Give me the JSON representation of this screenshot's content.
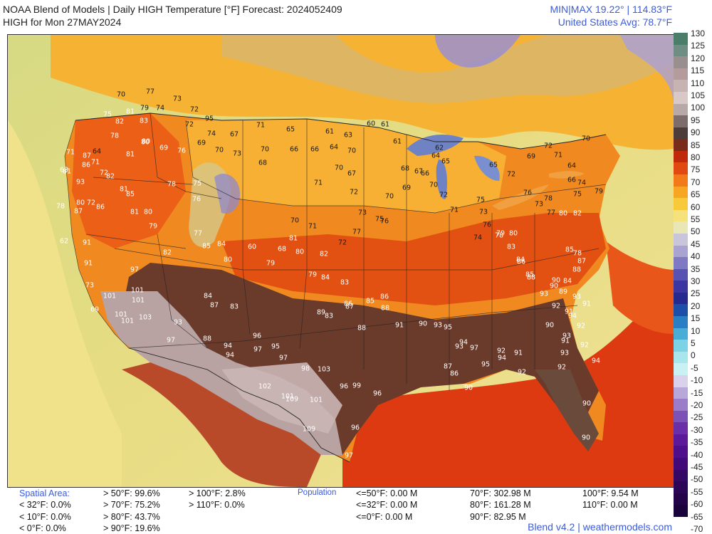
{
  "header": {
    "title_line1": "NOAA Blend of Models | Daily HIGH Temperature [°F] Forecast: 2024052409",
    "title_line2": "HIGH for Mon 27MAY2024",
    "minmax": "MIN|MAX 19.22°  |  114.83°F",
    "average": "United States Avg: 78.7°F"
  },
  "scale": {
    "ticks": [
      "130",
      "125",
      "120",
      "115",
      "110",
      "105",
      "100",
      "95",
      "90",
      "85",
      "80",
      "75",
      "70",
      "65",
      "60",
      "55",
      "50",
      "45",
      "40",
      "35",
      "30",
      "25",
      "20",
      "15",
      "10",
      "5",
      "0",
      "-5",
      "-10",
      "-15",
      "-20",
      "-25",
      "-30",
      "-35",
      "-40",
      "-45",
      "-50",
      "-55",
      "-60",
      "-65",
      "-70"
    ],
    "colors": [
      "#4a7e6a",
      "#6f8d83",
      "#9a8f8f",
      "#b59c9c",
      "#c8b3b3",
      "#d9c8c8",
      "#b8a9a9",
      "#7d6c6c",
      "#4d3d3a",
      "#7a2c1a",
      "#c02a0c",
      "#e04a10",
      "#f27a18",
      "#f7a522",
      "#f8c93a",
      "#f6e27a",
      "#e9e7b5",
      "#c9c6dc",
      "#a8a3d1",
      "#7f78c2",
      "#5a52b0",
      "#3c36a2",
      "#252a8f",
      "#1e4fa8",
      "#2a7ec4",
      "#49aed6",
      "#7dd3e6",
      "#a8e6ee",
      "#c9f0f2",
      "#d9d2ea",
      "#b8a8da",
      "#9a7cc8",
      "#7d52b6",
      "#6a2ea8",
      "#5c1a9a",
      "#4f0f8a",
      "#420a78",
      "#360866",
      "#2c0656",
      "#230448",
      "#1a033a"
    ]
  },
  "stats": {
    "spatial_label": "Spatial Area:",
    "population_label": "Population",
    "items": [
      "> 50°F: 99.6%",
      "> 100°F: 2.8%",
      "< 32°F: 0.0%",
      "> 70°F: 75.2%",
      "> 110°F: 0.0%",
      "< 10°F: 0.0%",
      "> 80°F: 43.7%",
      "< 0°F: 0.0%",
      "> 90°F: 19.6%",
      "<=50°F: 0.00 M",
      "<=32°F: 0.00 M",
      "<=0°F: 0.00 M",
      "70°F: 302.98 M",
      "80°F: 161.28 M",
      "90°F: 82.95 M",
      "100°F: 9.54 M",
      "110°F: 0.00 M"
    ]
  },
  "footer": "Blend v4.2 | weathermodels.com",
  "map": {
    "city_values": [
      {
        "t": "77",
        "c": "dark"
      },
      {
        "t": "73",
        "c": "dark"
      },
      {
        "t": "70",
        "c": "dark"
      },
      {
        "t": "81",
        "c": "light"
      },
      {
        "t": "79",
        "c": "dark"
      },
      {
        "t": "74",
        "c": "dark"
      },
      {
        "t": "72",
        "c": "dark"
      },
      {
        "t": "75",
        "c": "light"
      },
      {
        "t": "82",
        "c": "light"
      },
      {
        "t": "83",
        "c": "light"
      },
      {
        "t": "72",
        "c": "dark"
      },
      {
        "t": "78",
        "c": "light"
      },
      {
        "t": "80",
        "c": "light"
      },
      {
        "t": "81",
        "c": "light"
      },
      {
        "t": "80",
        "c": "light"
      },
      {
        "t": "69",
        "c": "light"
      },
      {
        "t": "76",
        "c": "light"
      },
      {
        "t": "95",
        "c": "dark"
      },
      {
        "t": "74",
        "c": "dark"
      },
      {
        "t": "69",
        "c": "dark"
      },
      {
        "t": "70",
        "c": "dark"
      },
      {
        "t": "67",
        "c": "dark"
      },
      {
        "t": "73",
        "c": "dark"
      },
      {
        "t": "71",
        "c": "dark"
      },
      {
        "t": "70",
        "c": "dark"
      },
      {
        "t": "68",
        "c": "dark"
      },
      {
        "t": "66",
        "c": "dark"
      },
      {
        "t": "66",
        "c": "dark"
      },
      {
        "t": "64",
        "c": "dark"
      },
      {
        "t": "70",
        "c": "dark"
      },
      {
        "t": "65",
        "c": "dark"
      },
      {
        "t": "61",
        "c": "dark"
      },
      {
        "t": "63",
        "c": "dark"
      },
      {
        "t": "60",
        "c": "dark"
      },
      {
        "t": "61",
        "c": "dark"
      },
      {
        "t": "71",
        "c": "light"
      },
      {
        "t": "87",
        "c": "light"
      },
      {
        "t": "64",
        "c": "dark"
      },
      {
        "t": "71",
        "c": "light"
      },
      {
        "t": "86",
        "c": "light"
      },
      {
        "t": "81",
        "c": "light"
      },
      {
        "t": "82",
        "c": "light"
      },
      {
        "t": "72",
        "c": "light"
      },
      {
        "t": "63",
        "c": "light"
      },
      {
        "t": "93",
        "c": "light"
      },
      {
        "t": "81",
        "c": "light"
      },
      {
        "t": "78",
        "c": "light"
      },
      {
        "t": "75",
        "c": "light"
      },
      {
        "t": "76",
        "c": "light"
      },
      {
        "t": "85",
        "c": "light"
      },
      {
        "t": "81",
        "c": "light"
      },
      {
        "t": "80",
        "c": "light"
      },
      {
        "t": "79",
        "c": "light"
      },
      {
        "t": "80",
        "c": "light"
      },
      {
        "t": "87",
        "c": "light"
      },
      {
        "t": "72",
        "c": "light"
      },
      {
        "t": "86",
        "c": "light"
      },
      {
        "t": "78",
        "c": "light"
      },
      {
        "t": "62",
        "c": "light"
      },
      {
        "t": "91",
        "c": "light"
      },
      {
        "t": "91",
        "c": "light"
      },
      {
        "t": "82",
        "c": "light"
      },
      {
        "t": "77",
        "c": "light"
      },
      {
        "t": "85",
        "c": "light"
      },
      {
        "t": "84",
        "c": "light"
      },
      {
        "t": "80",
        "c": "light"
      },
      {
        "t": "97",
        "c": "light"
      },
      {
        "t": "73",
        "c": "light"
      },
      {
        "t": "101",
        "c": "light"
      },
      {
        "t": "101",
        "c": "light"
      },
      {
        "t": "101",
        "c": "light"
      },
      {
        "t": "69",
        "c": "light"
      },
      {
        "t": "101",
        "c": "light"
      },
      {
        "t": "101",
        "c": "light"
      },
      {
        "t": "103",
        "c": "light"
      },
      {
        "t": "93",
        "c": "light"
      },
      {
        "t": "97",
        "c": "light"
      },
      {
        "t": "84",
        "c": "light"
      },
      {
        "t": "87",
        "c": "light"
      },
      {
        "t": "83",
        "c": "light"
      },
      {
        "t": "88",
        "c": "light"
      },
      {
        "t": "94",
        "c": "light"
      },
      {
        "t": "94",
        "c": "light"
      },
      {
        "t": "97",
        "c": "light"
      },
      {
        "t": "96",
        "c": "light"
      },
      {
        "t": "95",
        "c": "light"
      },
      {
        "t": "97",
        "c": "light"
      },
      {
        "t": "98",
        "c": "light"
      },
      {
        "t": "103",
        "c": "light"
      },
      {
        "t": "96",
        "c": "light"
      },
      {
        "t": "102",
        "c": "light"
      },
      {
        "t": "101",
        "c": "light"
      },
      {
        "t": "109",
        "c": "light"
      },
      {
        "t": "101",
        "c": "light"
      },
      {
        "t": "99",
        "c": "light"
      },
      {
        "t": "109",
        "c": "light"
      },
      {
        "t": "96",
        "c": "light"
      },
      {
        "t": "97",
        "c": "light"
      },
      {
        "t": "96",
        "c": "light"
      },
      {
        "t": "70",
        "c": "dark"
      },
      {
        "t": "71",
        "c": "dark"
      },
      {
        "t": "67",
        "c": "dark"
      },
      {
        "t": "72",
        "c": "dark"
      },
      {
        "t": "70",
        "c": "dark"
      },
      {
        "t": "73",
        "c": "dark"
      },
      {
        "t": "76",
        "c": "dark"
      },
      {
        "t": "77",
        "c": "dark"
      },
      {
        "t": "75",
        "c": "dark"
      },
      {
        "t": "72",
        "c": "dark"
      },
      {
        "t": "71",
        "c": "dark"
      },
      {
        "t": "70",
        "c": "dark"
      },
      {
        "t": "68",
        "c": "light"
      },
      {
        "t": "79",
        "c": "light"
      },
      {
        "t": "60",
        "c": "light"
      },
      {
        "t": "80",
        "c": "light"
      },
      {
        "t": "81",
        "c": "light"
      },
      {
        "t": "82",
        "c": "light"
      },
      {
        "t": "79",
        "c": "light"
      },
      {
        "t": "84",
        "c": "light"
      },
      {
        "t": "83",
        "c": "light"
      },
      {
        "t": "89",
        "c": "light"
      },
      {
        "t": "83",
        "c": "light"
      },
      {
        "t": "86",
        "c": "light"
      },
      {
        "t": "85",
        "c": "light"
      },
      {
        "t": "86",
        "c": "light"
      },
      {
        "t": "88",
        "c": "light"
      },
      {
        "t": "87",
        "c": "light"
      },
      {
        "t": "88",
        "c": "light"
      },
      {
        "t": "91",
        "c": "light"
      },
      {
        "t": "90",
        "c": "light"
      },
      {
        "t": "93",
        "c": "light"
      },
      {
        "t": "95",
        "c": "light"
      },
      {
        "t": "94",
        "c": "light"
      },
      {
        "t": "93",
        "c": "light"
      },
      {
        "t": "97",
        "c": "light"
      },
      {
        "t": "95",
        "c": "light"
      },
      {
        "t": "92",
        "c": "light"
      },
      {
        "t": "94",
        "c": "light"
      },
      {
        "t": "91",
        "c": "light"
      },
      {
        "t": "92",
        "c": "light"
      },
      {
        "t": "90",
        "c": "light"
      },
      {
        "t": "87",
        "c": "light"
      },
      {
        "t": "86",
        "c": "light"
      },
      {
        "t": "65",
        "c": "dark"
      },
      {
        "t": "62",
        "c": "dark"
      },
      {
        "t": "61",
        "c": "dark"
      },
      {
        "t": "64",
        "c": "dark"
      },
      {
        "t": "65",
        "c": "dark"
      },
      {
        "t": "68",
        "c": "dark"
      },
      {
        "t": "67",
        "c": "dark"
      },
      {
        "t": "66",
        "c": "dark"
      },
      {
        "t": "69",
        "c": "dark"
      },
      {
        "t": "70",
        "c": "dark"
      },
      {
        "t": "72",
        "c": "dark"
      },
      {
        "t": "71",
        "c": "dark"
      },
      {
        "t": "75",
        "c": "dark"
      },
      {
        "t": "73",
        "c": "dark"
      },
      {
        "t": "76",
        "c": "dark"
      },
      {
        "t": "74",
        "c": "dark"
      },
      {
        "t": "78",
        "c": "light"
      },
      {
        "t": "79",
        "c": "light"
      },
      {
        "t": "80",
        "c": "light"
      },
      {
        "t": "83",
        "c": "light"
      },
      {
        "t": "84",
        "c": "light"
      },
      {
        "t": "86",
        "c": "light"
      },
      {
        "t": "85",
        "c": "light"
      },
      {
        "t": "88",
        "c": "light"
      },
      {
        "t": "90",
        "c": "light"
      },
      {
        "t": "89",
        "c": "light"
      },
      {
        "t": "91",
        "c": "light"
      },
      {
        "t": "93",
        "c": "light"
      },
      {
        "t": "92",
        "c": "light"
      },
      {
        "t": "94",
        "c": "light"
      },
      {
        "t": "90",
        "c": "light"
      },
      {
        "t": "91",
        "c": "light"
      },
      {
        "t": "93",
        "c": "light"
      },
      {
        "t": "92",
        "c": "light"
      },
      {
        "t": "90",
        "c": "light"
      },
      {
        "t": "72",
        "c": "dark"
      },
      {
        "t": "76",
        "c": "dark"
      },
      {
        "t": "78",
        "c": "dark"
      },
      {
        "t": "73",
        "c": "dark"
      },
      {
        "t": "77",
        "c": "dark"
      },
      {
        "t": "80",
        "c": "light"
      },
      {
        "t": "82",
        "c": "light"
      },
      {
        "t": "85",
        "c": "light"
      },
      {
        "t": "87",
        "c": "light"
      },
      {
        "t": "88",
        "c": "light"
      },
      {
        "t": "84",
        "c": "light"
      },
      {
        "t": "78",
        "c": "light"
      },
      {
        "t": "90",
        "c": "light"
      },
      {
        "t": "93",
        "c": "light"
      },
      {
        "t": "91",
        "c": "light"
      },
      {
        "t": "92",
        "c": "light"
      },
      {
        "t": "94",
        "c": "light"
      },
      {
        "t": "93",
        "c": "light"
      },
      {
        "t": "92",
        "c": "light"
      },
      {
        "t": "90",
        "c": "light"
      },
      {
        "t": "69",
        "c": "dark"
      },
      {
        "t": "64",
        "c": "dark"
      },
      {
        "t": "66",
        "c": "dark"
      },
      {
        "t": "72",
        "c": "dark"
      },
      {
        "t": "71",
        "c": "dark"
      },
      {
        "t": "74",
        "c": "dark"
      },
      {
        "t": "75",
        "c": "dark"
      },
      {
        "t": "79",
        "c": "dark"
      },
      {
        "t": "70",
        "c": "dark"
      }
    ]
  }
}
